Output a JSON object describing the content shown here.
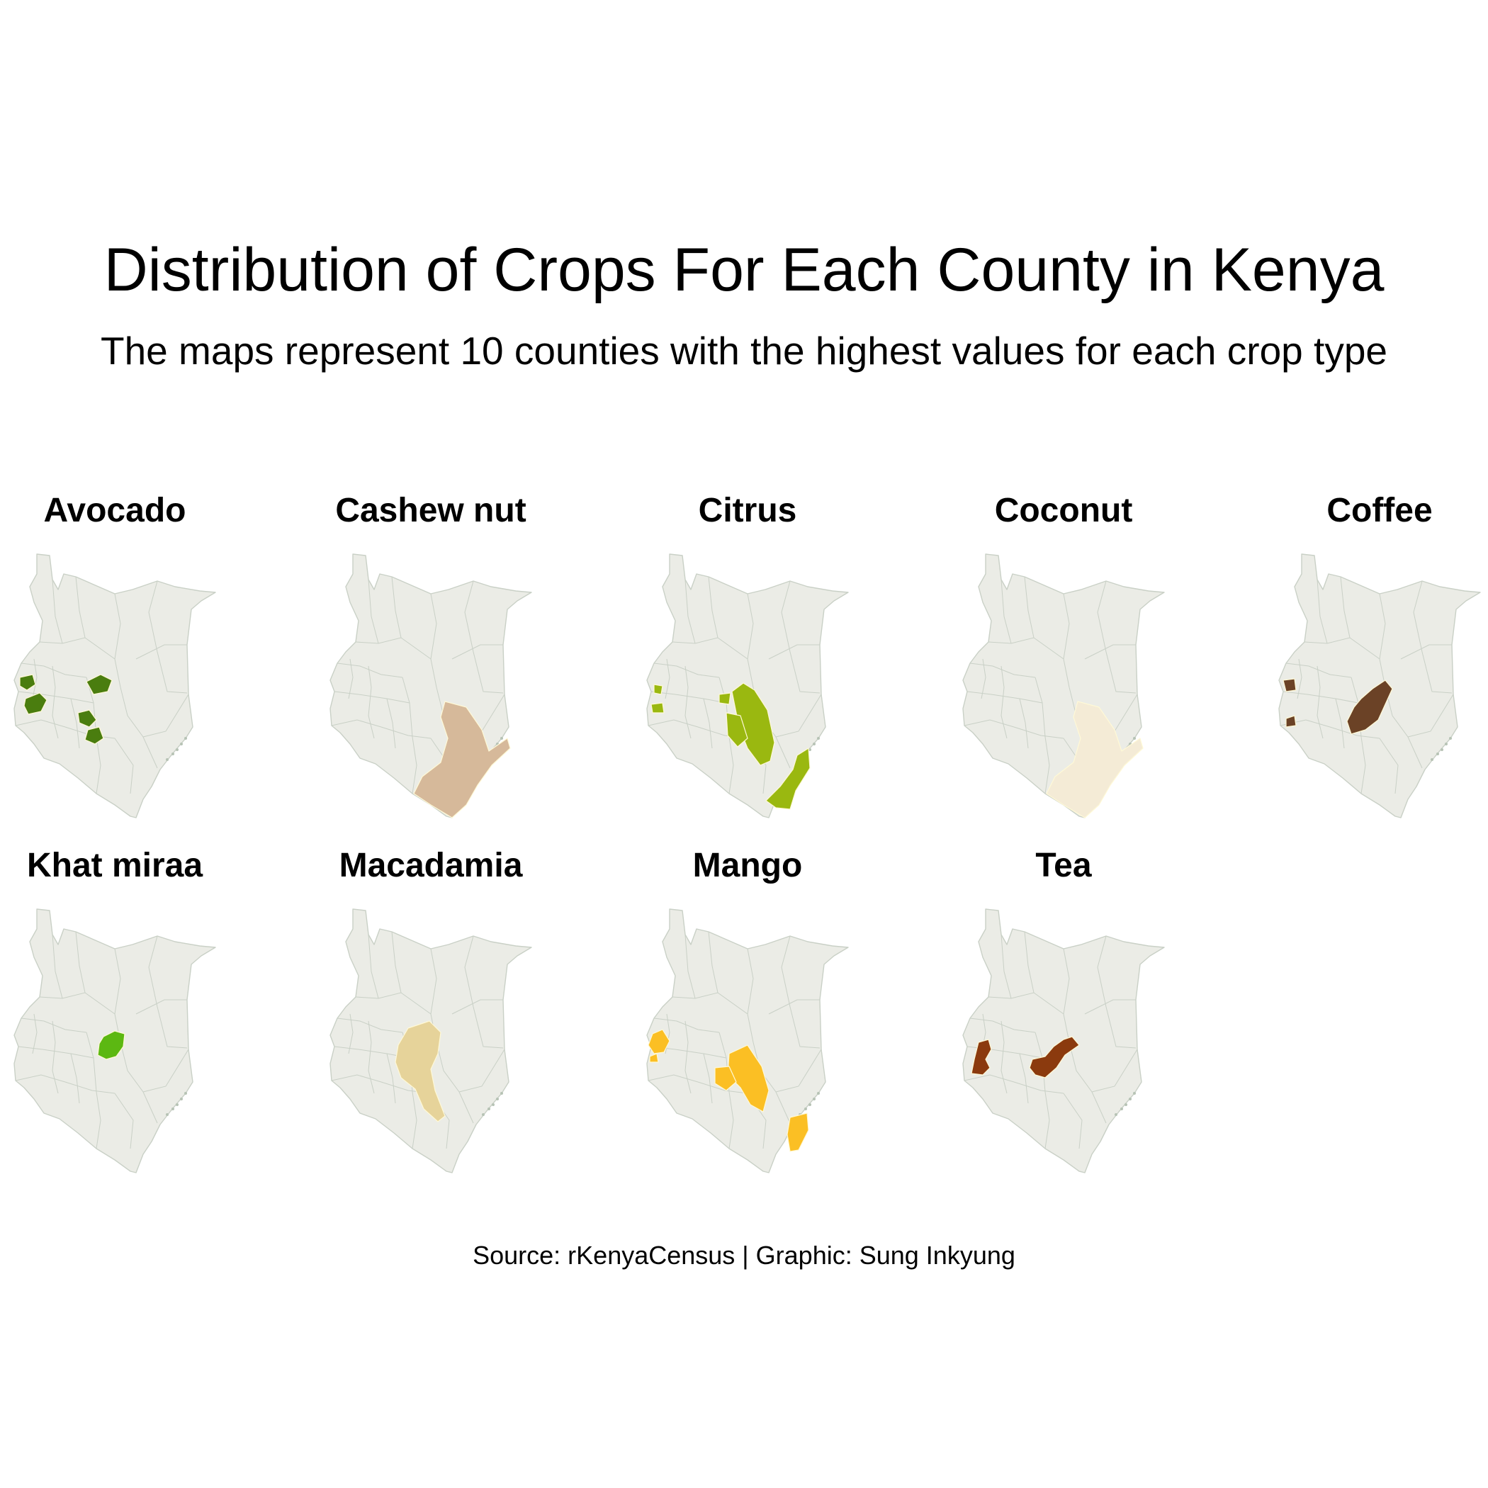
{
  "title": "Distribution of Crops For Each County in Kenya",
  "subtitle": "The maps represent 10 counties with the highest values for each crop type",
  "caption": "Source: rKenyaCensus | Graphic: Sung Inkyung",
  "colors": {
    "base_fill": "#ebece6",
    "base_stroke": "#c9d0c6"
  },
  "panels": [
    {
      "crop": "Avocado",
      "color": "#4a7d0f",
      "highlight": "west-central-highlands"
    },
    {
      "crop": "Cashew nut",
      "color": "#d6b99a",
      "highlight": "coast"
    },
    {
      "crop": "Citrus",
      "color": "#9ab810",
      "highlight": "eastern-and-coast"
    },
    {
      "crop": "Coconut",
      "color": "#f4ebd6",
      "highlight": "coast"
    },
    {
      "crop": "Coffee",
      "color": "#6b4226",
      "highlight": "central-highlands"
    },
    {
      "crop": "Khat miraa",
      "color": "#5cb812",
      "highlight": "meru"
    },
    {
      "crop": "Macadamia",
      "color": "#e6d39a",
      "highlight": "central-eastern"
    },
    {
      "crop": "Mango",
      "color": "#fbbf24",
      "highlight": "western-eastern-coast"
    },
    {
      "crop": "Tea",
      "color": "#8b3a0e",
      "highlight": "west-and-central-highlands"
    }
  ]
}
